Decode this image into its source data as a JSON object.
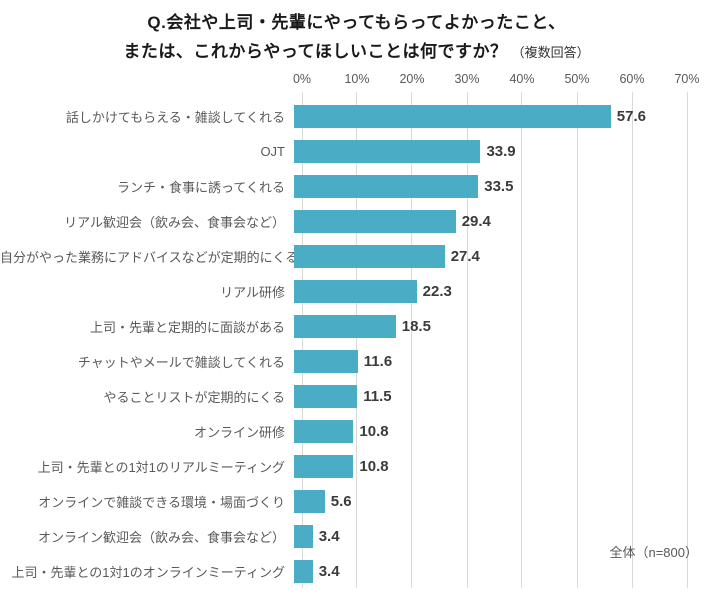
{
  "title": {
    "line1": "Q.会社や上司・先輩にやってもらってよかったこと、",
    "line2_main": "または、これからやってほしいことは何ですか？",
    "line2_suffix": "（複数回答）"
  },
  "chart_data": {
    "type": "bar",
    "orientation": "horizontal",
    "title": "Q.会社や上司・先輩にやってもらってよかったこと、または、これからやってほしいことは何ですか？（複数回答）",
    "categories": [
      "話しかけてもらえる・雑談してくれる",
      "OJT",
      "ランチ・食事に誘ってくれる",
      "リアル歓迎会（飲み会、食事会など）",
      "自分がやった業務にアドバイスなどが定期的にくる",
      "リアル研修",
      "上司・先輩と定期的に面談がある",
      "チャットやメールで雑談してくれる",
      "やることリストが定期的にくる",
      "オンライン研修",
      "上司・先輩との1対1のリアルミーティング",
      "オンラインで雑談できる環境・場面づくり",
      "オンライン歓迎会（飲み会、食事会など）",
      "上司・先輩との1対1のオンラインミーティング"
    ],
    "values": [
      57.6,
      33.9,
      33.5,
      29.4,
      27.4,
      22.3,
      18.5,
      11.6,
      11.5,
      10.8,
      10.8,
      5.6,
      3.4,
      3.4
    ],
    "value_labels": [
      "57.6",
      "33.9",
      "33.5",
      "29.4",
      "27.4",
      "22.3",
      "18.5",
      "11.6",
      "11.5",
      "10.8",
      "10.8",
      "5.6",
      "3.4",
      "3.4"
    ],
    "xlim": [
      0,
      70
    ],
    "x_ticks": [
      "0%",
      "10%",
      "20%",
      "30%",
      "40%",
      "50%",
      "60%",
      "70%"
    ],
    "grid": true,
    "bar_color": "#4aacc5",
    "gridline_color": "#d9d9d9",
    "note": "全体（n=800）"
  }
}
